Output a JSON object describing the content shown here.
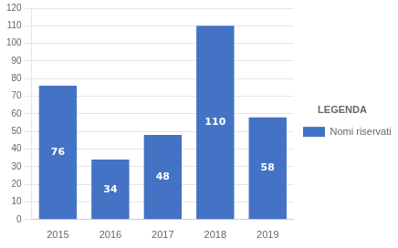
{
  "chart_data": {
    "type": "bar",
    "categories": [
      "2015",
      "2016",
      "2017",
      "2018",
      "2019"
    ],
    "series": [
      {
        "name": "Nomi riservati",
        "color": "#4472C4",
        "values": [
          76,
          34,
          48,
          110,
          58
        ]
      }
    ],
    "legend_title": "LEGENDA",
    "legend": "right",
    "ylim": [
      0,
      120
    ],
    "yticks": [
      0,
      10,
      20,
      30,
      40,
      50,
      60,
      70,
      80,
      90,
      100,
      110,
      120
    ],
    "grid": true,
    "data_labels": true
  }
}
